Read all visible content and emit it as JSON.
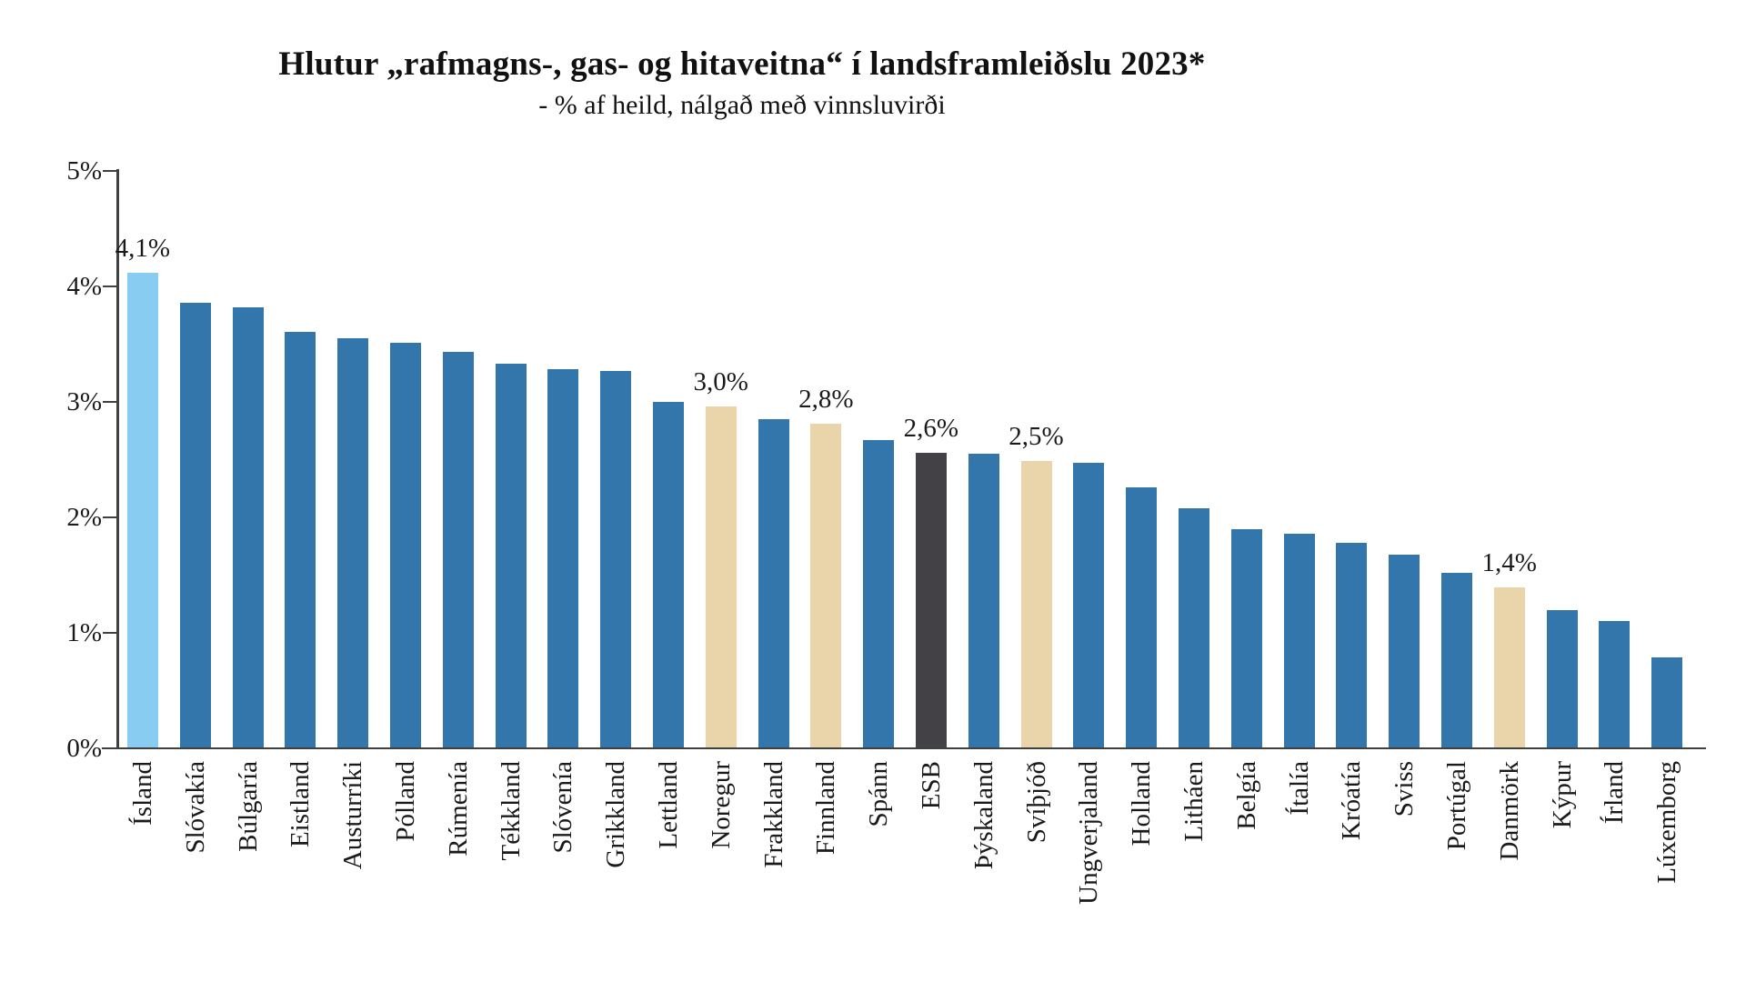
{
  "chart_data": {
    "type": "bar",
    "title": "Hlutur „rafmagns-, gas- og hitaveitna“ í landsframleiðslu 2023*",
    "subtitle": "- % af heild, nálgað með vinnsluvirði",
    "xlabel": "",
    "ylabel": "",
    "ylim": [
      0,
      5
    ],
    "yticks": [
      "0%",
      "1%",
      "2%",
      "3%",
      "4%",
      "5%"
    ],
    "grid": false,
    "legend_position": "none",
    "colors": {
      "default": "#3276AC",
      "highlight": "#89CCF2",
      "accent": "#EAD5AB",
      "dark": "#434046",
      "axis": "#404040",
      "text": "#1A1A1A"
    },
    "bars": [
      {
        "category": "Ísland",
        "value": 4.12,
        "label": "4,1%",
        "color": "highlight"
      },
      {
        "category": "Slóvakía",
        "value": 3.86,
        "label": "",
        "color": "default"
      },
      {
        "category": "Búlgaría",
        "value": 3.82,
        "label": "",
        "color": "default"
      },
      {
        "category": "Eistland",
        "value": 3.61,
        "label": "",
        "color": "default"
      },
      {
        "category": "Austurríki",
        "value": 3.55,
        "label": "",
        "color": "default"
      },
      {
        "category": "Pólland",
        "value": 3.51,
        "label": "",
        "color": "default"
      },
      {
        "category": "Rúmenía",
        "value": 3.43,
        "label": "",
        "color": "default"
      },
      {
        "category": "Tékkland",
        "value": 3.33,
        "label": "",
        "color": "default"
      },
      {
        "category": "Slóvenía",
        "value": 3.28,
        "label": "",
        "color": "default"
      },
      {
        "category": "Grikkland",
        "value": 3.27,
        "label": "",
        "color": "default"
      },
      {
        "category": "Lettland",
        "value": 3.0,
        "label": "",
        "color": "default"
      },
      {
        "category": "Noregur",
        "value": 2.96,
        "label": "3,0%",
        "color": "accent"
      },
      {
        "category": "Frakkland",
        "value": 2.85,
        "label": "",
        "color": "default"
      },
      {
        "category": "Finnland",
        "value": 2.81,
        "label": "2,8%",
        "color": "accent"
      },
      {
        "category": "Spánn",
        "value": 2.67,
        "label": "",
        "color": "default"
      },
      {
        "category": "ESB",
        "value": 2.56,
        "label": "2,6%",
        "color": "dark"
      },
      {
        "category": "Þýskaland",
        "value": 2.55,
        "label": "",
        "color": "default"
      },
      {
        "category": "Svíþjóð",
        "value": 2.49,
        "label": "2,5%",
        "color": "accent"
      },
      {
        "category": "Ungverjaland",
        "value": 2.47,
        "label": "",
        "color": "default"
      },
      {
        "category": "Holland",
        "value": 2.26,
        "label": "",
        "color": "default"
      },
      {
        "category": "Litháen",
        "value": 2.08,
        "label": "",
        "color": "default"
      },
      {
        "category": "Belgía",
        "value": 1.9,
        "label": "",
        "color": "default"
      },
      {
        "category": "Ítalía",
        "value": 1.86,
        "label": "",
        "color": "default"
      },
      {
        "category": "Króatía",
        "value": 1.78,
        "label": "",
        "color": "default"
      },
      {
        "category": "Sviss",
        "value": 1.68,
        "label": "",
        "color": "default"
      },
      {
        "category": "Portúgal",
        "value": 1.52,
        "label": "",
        "color": "default"
      },
      {
        "category": "Danmörk",
        "value": 1.39,
        "label": "1,4%",
        "color": "accent"
      },
      {
        "category": "Kýpur",
        "value": 1.2,
        "label": "",
        "color": "default"
      },
      {
        "category": "Írland",
        "value": 1.1,
        "label": "",
        "color": "default"
      },
      {
        "category": "Lúxemborg",
        "value": 0.79,
        "label": "",
        "color": "default"
      }
    ]
  }
}
